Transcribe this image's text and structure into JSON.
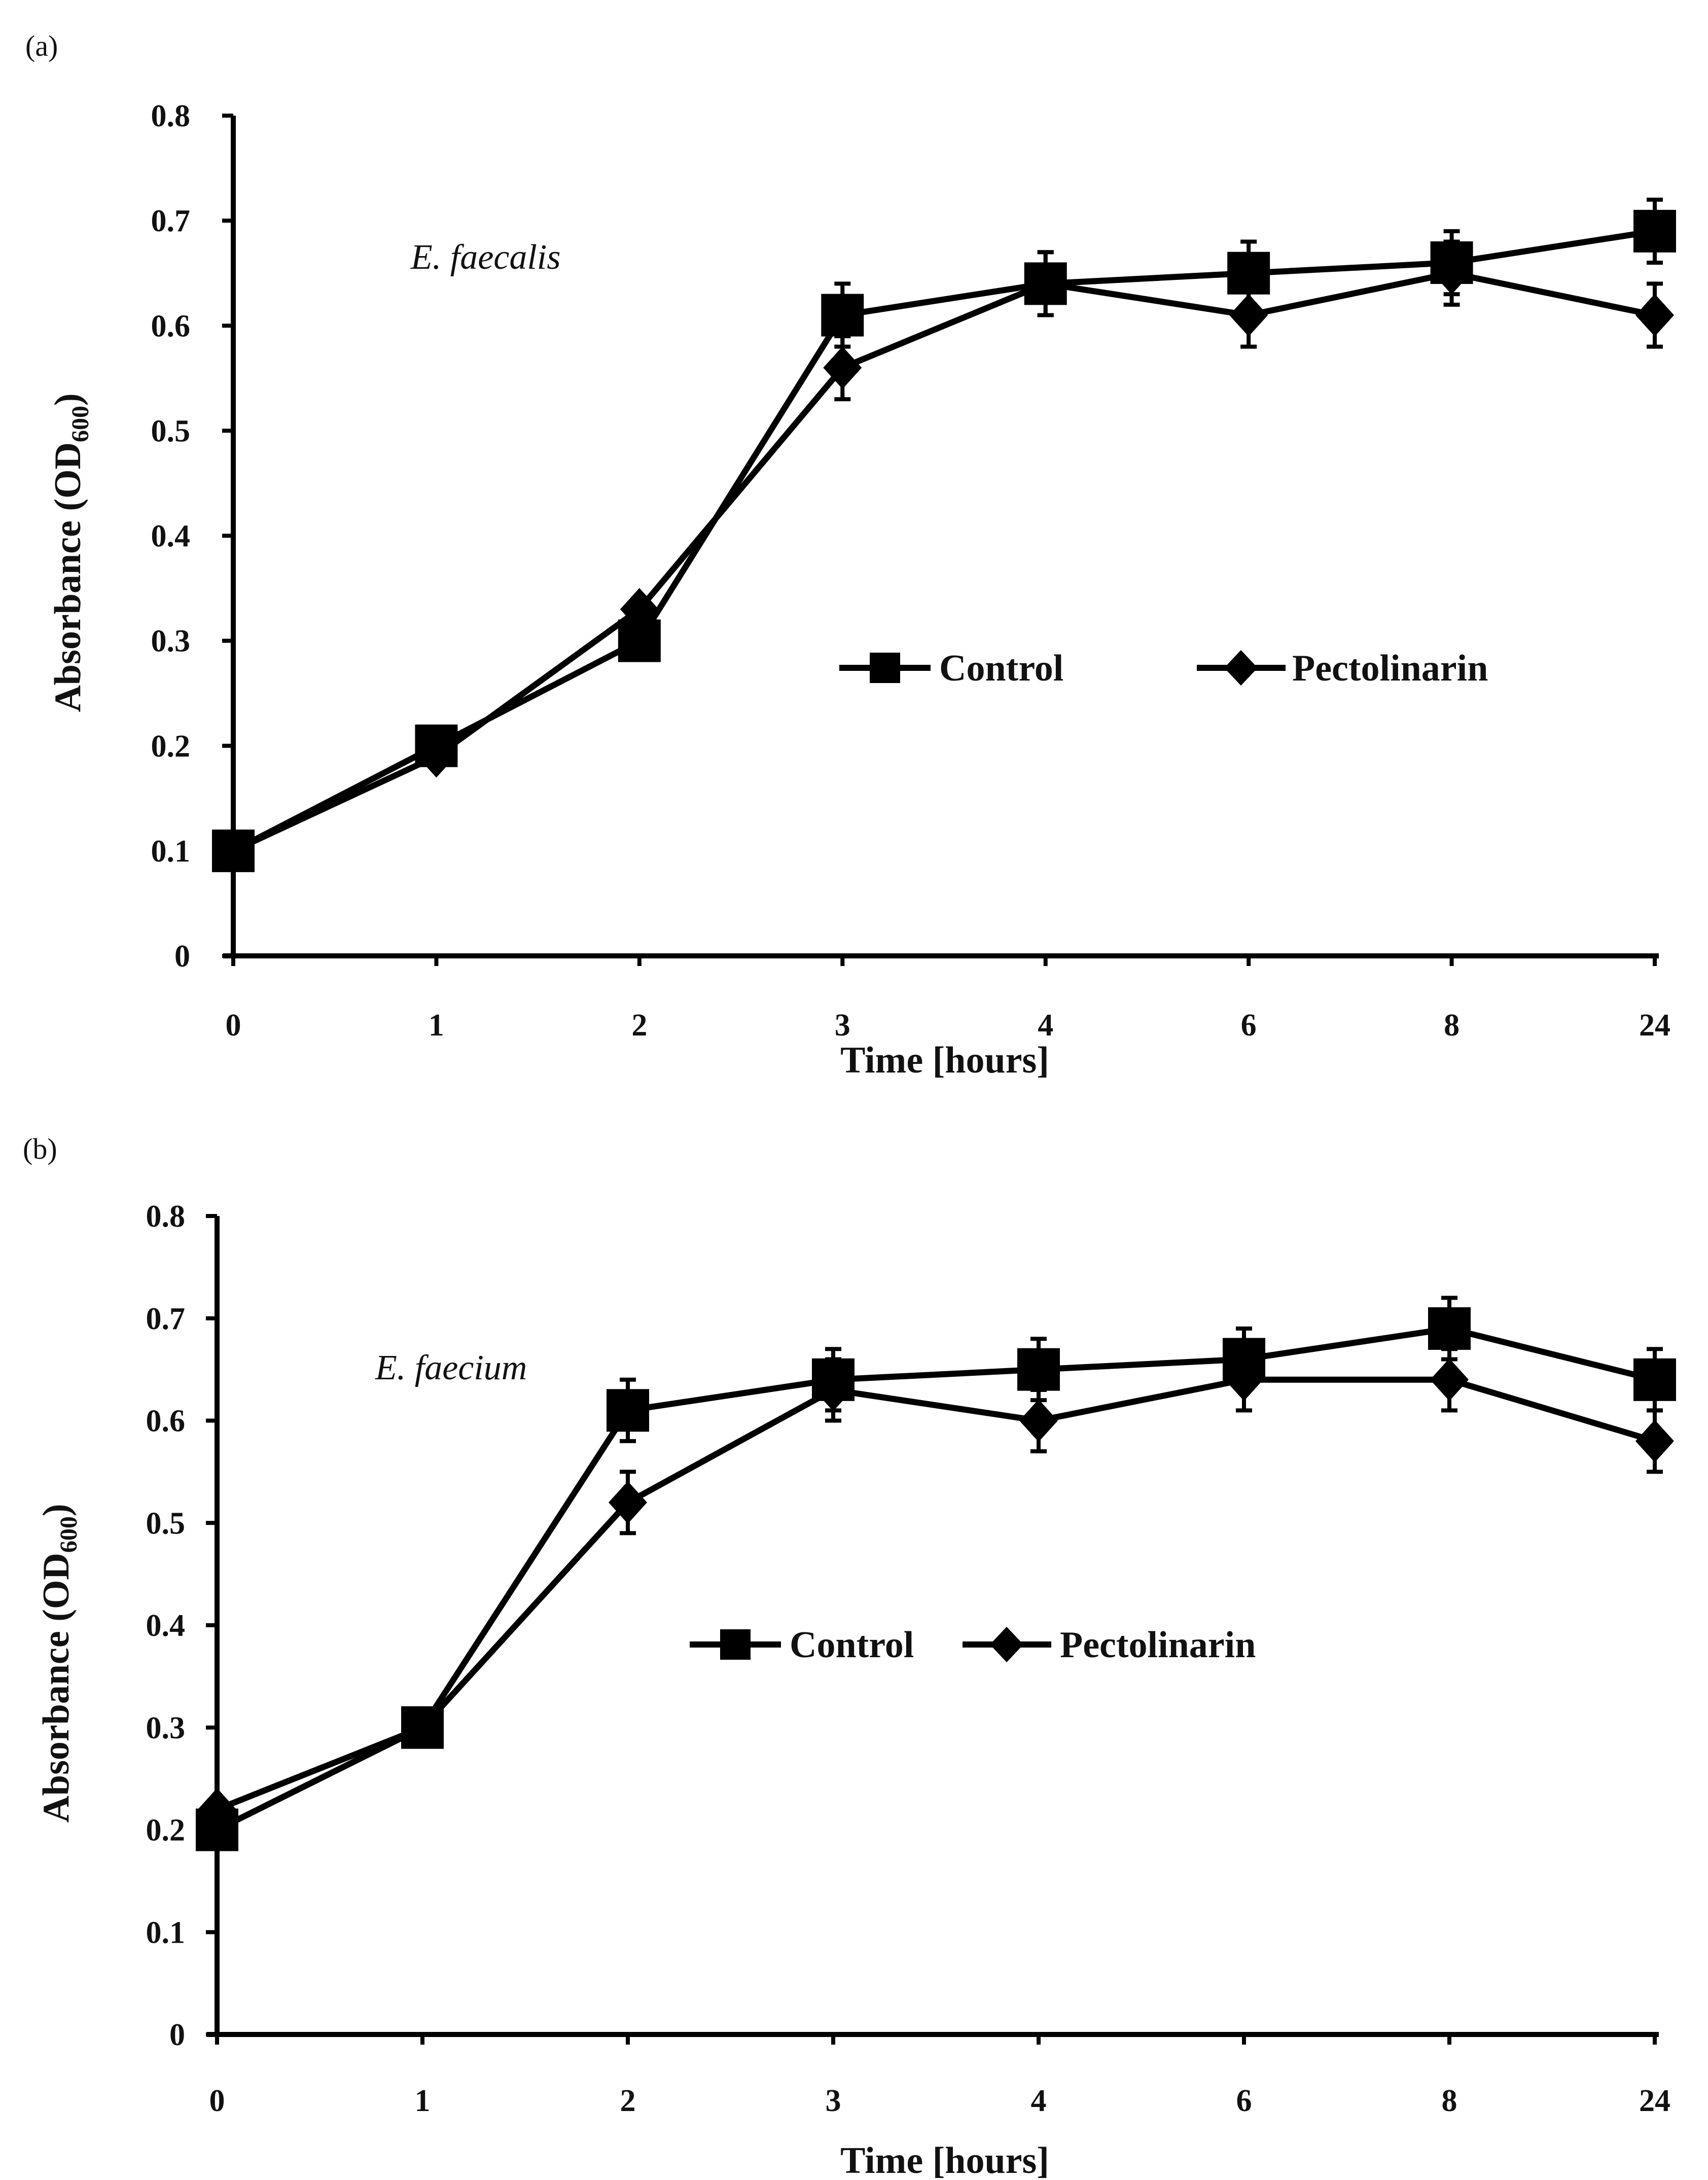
{
  "chart_data": [
    {
      "panel_label": "(a)",
      "type": "line",
      "categories": [
        "0",
        "1",
        "2",
        "3",
        "4",
        "6",
        "8",
        "24"
      ],
      "series": [
        {
          "name": "Control",
          "marker": "square",
          "values": [
            0.1,
            0.2,
            0.3,
            0.61,
            0.64,
            0.65,
            0.66,
            0.69
          ],
          "errors": [
            0.01,
            0.01,
            0.01,
            0.03,
            0.03,
            0.03,
            0.03,
            0.03
          ]
        },
        {
          "name": "Pectolinarin",
          "marker": "diamond",
          "values": [
            0.1,
            0.19,
            0.33,
            0.56,
            0.64,
            0.61,
            0.65,
            0.61
          ],
          "errors": [
            0.01,
            0.01,
            0.01,
            0.03,
            0.03,
            0.03,
            0.03,
            0.03
          ]
        }
      ],
      "annotation": "E.  faecalis",
      "xlabel": "Time [hours]",
      "ylabel_main": "Absorbance (OD",
      "ylabel_sub": "600",
      "ylabel_close": ")",
      "ylim": [
        0,
        0.8
      ],
      "yticks": [
        "0",
        "0.1",
        "0.2",
        "0.3",
        "0.4",
        "0.5",
        "0.6",
        "0.7",
        "0.8"
      ],
      "legend_position": "center-right",
      "grid": false
    },
    {
      "panel_label": "(b)",
      "type": "line",
      "categories": [
        "0",
        "1",
        "2",
        "3",
        "4",
        "6",
        "8",
        "24"
      ],
      "series": [
        {
          "name": "Control",
          "marker": "square",
          "values": [
            0.2,
            0.3,
            0.61,
            0.64,
            0.65,
            0.66,
            0.69,
            0.64
          ],
          "errors": [
            0.01,
            0.01,
            0.03,
            0.03,
            0.03,
            0.03,
            0.03,
            0.03
          ]
        },
        {
          "name": "Pectolinarin",
          "marker": "diamond",
          "values": [
            0.22,
            0.3,
            0.52,
            0.63,
            0.6,
            0.64,
            0.64,
            0.58
          ],
          "errors": [
            0.01,
            0.01,
            0.03,
            0.03,
            0.03,
            0.03,
            0.03,
            0.03
          ]
        }
      ],
      "annotation": "E.  faecium",
      "xlabel": "Time [hours]",
      "ylabel_main": "Absorbance (OD",
      "ylabel_sub": "600",
      "ylabel_close": ")",
      "ylim": [
        0,
        0.8
      ],
      "yticks": [
        "0",
        "0.1",
        "0.2",
        "0.3",
        "0.4",
        "0.5",
        "0.6",
        "0.7",
        "0.8"
      ],
      "legend_position": "center",
      "grid": false
    }
  ]
}
